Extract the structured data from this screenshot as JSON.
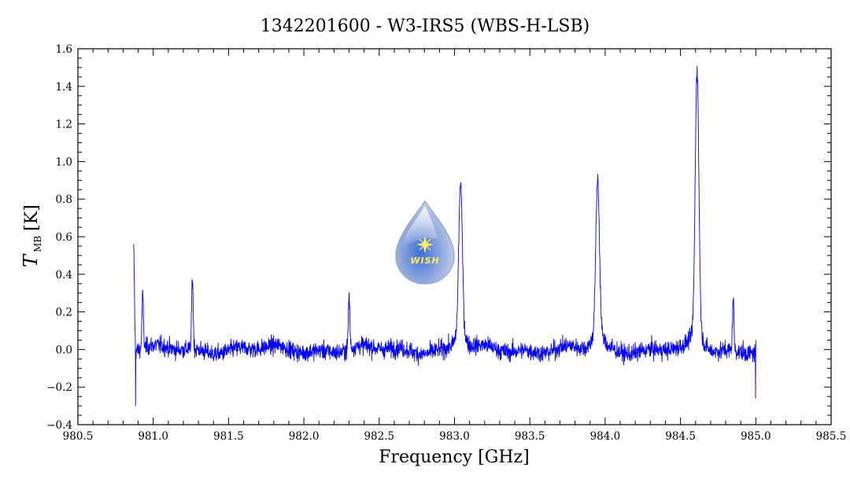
{
  "chart_data": {
    "type": "line",
    "title": "1342201600 - W3-IRS5 (WBS-H-LSB)",
    "xlabel": "Frequency [GHz]",
    "ylabel_symbol": "T",
    "ylabel_subscript": "MB",
    "ylabel_unit": "[K]",
    "xlim": [
      980.5,
      985.5
    ],
    "ylim": [
      -0.4,
      1.6
    ],
    "x_ticks": [
      980.5,
      981.0,
      981.5,
      982.0,
      982.5,
      983.0,
      983.5,
      984.0,
      984.5,
      985.0,
      985.5
    ],
    "x_tick_labels": [
      "980.5",
      "981.0",
      "981.5",
      "982.0",
      "982.5",
      "983.0",
      "983.5",
      "984.0",
      "984.5",
      "985.0",
      "985.5"
    ],
    "y_ticks": [
      -0.4,
      -0.2,
      0.0,
      0.2,
      0.4,
      0.6,
      0.8,
      1.0,
      1.2,
      1.4,
      1.6
    ],
    "y_tick_labels": [
      "−0.4",
      "−0.2",
      "0.0",
      "0.2",
      "0.4",
      "0.6",
      "0.8",
      "1.0",
      "1.2",
      "1.4",
      "1.6"
    ],
    "grid": false,
    "series": [
      {
        "color": "#0000ff",
        "x_range": [
          980.87,
          985.0
        ],
        "noise_rms": 0.055,
        "peaks": [
          {
            "x": 980.87,
            "y": 0.56
          },
          {
            "x": 980.93,
            "y": 0.3
          },
          {
            "x": 981.26,
            "y": 0.4
          },
          {
            "x": 982.3,
            "y": 0.31
          },
          {
            "x": 983.04,
            "y": 0.83
          },
          {
            "x": 983.95,
            "y": 0.84
          },
          {
            "x": 984.61,
            "y": 1.42
          },
          {
            "x": 984.85,
            "y": 0.29
          }
        ],
        "points": []
      }
    ]
  },
  "logo": {
    "text": "WISH",
    "color": "#9aaed8"
  }
}
